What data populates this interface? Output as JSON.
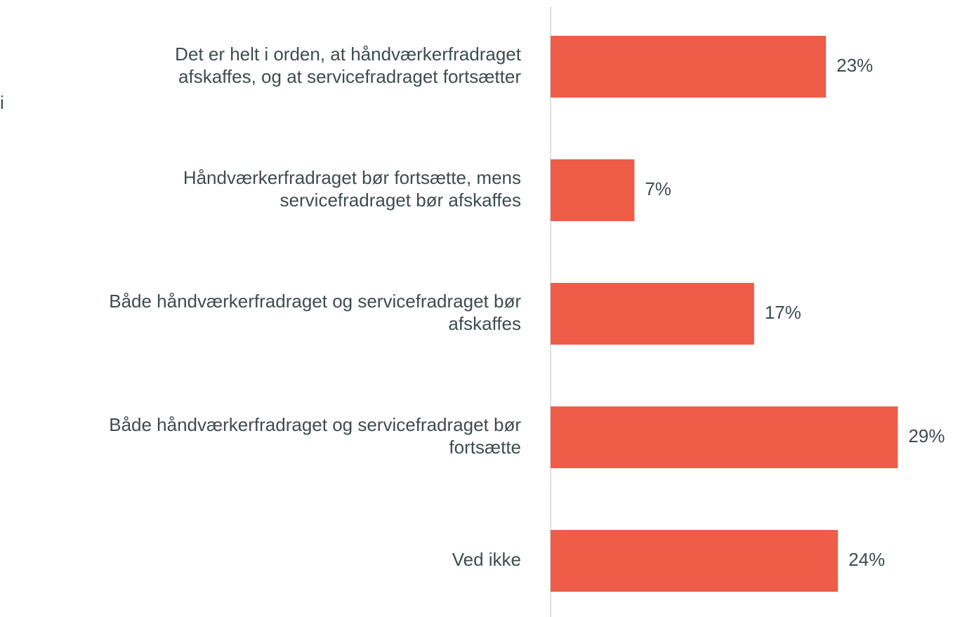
{
  "chart_data": {
    "type": "barh",
    "categories": [
      "Det er helt i orden, at håndværkerfradraget\nafskaffes, og at servicefradraget fortsætter",
      "Håndværkerfradraget bør fortsætte, mens\nservicefradraget bør afskaffes",
      "Både håndværkerfradraget og servicefradraget bør\nafskaffes",
      "Både håndværkerfradraget og servicefradraget bør\nfortsætte",
      "Ved ikke"
    ],
    "values": [
      23,
      7,
      17,
      29,
      24
    ],
    "value_labels": [
      "23%",
      "7%",
      "17%",
      "29%",
      "24%"
    ],
    "color": "#ef5c48",
    "xlim": [
      0,
      30
    ],
    "annotations": [
      "i"
    ]
  }
}
